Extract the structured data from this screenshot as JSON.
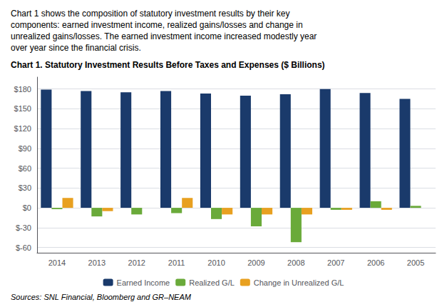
{
  "chart_data": {
    "type": "bar",
    "title": "Chart 1. Statutory Investment Results Before Taxes and Expenses ($ Billions)",
    "subtitle": "Chart 1 shows the composition of statutory investment results by their key\ncomponents: earned investment income, realized gains/losses and change in\nunrealized gains/losses. The earned investment income increased modestly year\nover year since the financial crisis.",
    "annotations": [
      "Sources: SNL Financial, Bloomberg and GR–NEAM"
    ],
    "categories": [
      "2014",
      "2013",
      "2012",
      "2011",
      "2010",
      "2009",
      "2008",
      "2007",
      "2006",
      "2005"
    ],
    "series": [
      {
        "name": "Earned Income",
        "color": "#1a3a6b",
        "values": [
          179,
          177,
          175,
          177,
          173,
          170,
          172,
          180,
          174,
          165
        ]
      },
      {
        "name": "Realized G/L",
        "color": "#6aaa3a",
        "values": [
          -2,
          -13,
          -10,
          -8,
          -17,
          -28,
          -52,
          -3,
          10,
          3
        ]
      },
      {
        "name": "Change in Unrealized G/L",
        "color": "#e8a020",
        "values": [
          15,
          -5,
          0,
          15,
          -10,
          -10,
          -10,
          -3,
          -3,
          0
        ]
      }
    ],
    "ylim": [
      -68,
      198
    ],
    "yticks": [
      {
        "value": -60,
        "label": "$-60"
      },
      {
        "value": -30,
        "label": "$-30"
      },
      {
        "value": 0,
        "label": "$0"
      },
      {
        "value": 30,
        "label": "$30"
      },
      {
        "value": 60,
        "label": "$60"
      },
      {
        "value": 90,
        "label": "$90"
      },
      {
        "value": 120,
        "label": "$120"
      },
      {
        "value": 150,
        "label": "$150"
      },
      {
        "value": 180,
        "label": "$180"
      }
    ],
    "grid": true,
    "legend": "bottom"
  }
}
